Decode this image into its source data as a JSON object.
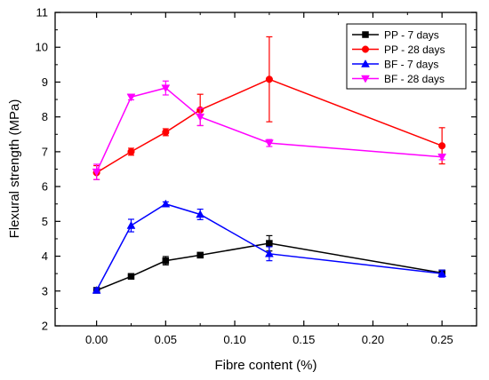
{
  "chart_data": {
    "type": "line",
    "xlabel": "Fibre content (%)",
    "ylabel": "Flexural strength (MPa)",
    "xlim": [
      -0.03,
      0.275
    ],
    "ylim": [
      2,
      11
    ],
    "x_ticks": [
      0.0,
      0.05,
      0.1,
      0.15,
      0.2,
      0.25
    ],
    "x_tick_labels": [
      "0.00",
      "0.05",
      "0.10",
      "0.15",
      "0.20",
      "0.25"
    ],
    "y_ticks": [
      2,
      3,
      4,
      5,
      6,
      7,
      8,
      9,
      10,
      11
    ],
    "y_tick_labels": [
      "2",
      "3",
      "4",
      "5",
      "6",
      "7",
      "8",
      "9",
      "10",
      "11"
    ],
    "grid": false,
    "legend_position": "top-right",
    "series": [
      {
        "name": "PP - 7 days",
        "color": "#000000",
        "marker": "square",
        "x": [
          0.0,
          0.025,
          0.05,
          0.075,
          0.125,
          0.25
        ],
        "y": [
          3.02,
          3.42,
          3.87,
          4.03,
          4.37,
          3.52
        ],
        "err": [
          0.05,
          0.04,
          0.12,
          0.05,
          0.22,
          0.08
        ]
      },
      {
        "name": "PP - 28 days",
        "color": "#ff0000",
        "marker": "circle",
        "x": [
          0.0,
          0.025,
          0.05,
          0.075,
          0.125,
          0.25
        ],
        "y": [
          6.4,
          7.0,
          7.56,
          8.2,
          9.08,
          7.17
        ],
        "err": [
          0.2,
          0.1,
          0.1,
          0.45,
          1.22,
          0.52
        ]
      },
      {
        "name": "BF - 7 days",
        "color": "#0000ff",
        "marker": "triangle-up",
        "x": [
          0.0,
          0.025,
          0.05,
          0.075,
          0.125,
          0.25
        ],
        "y": [
          3.02,
          4.88,
          5.5,
          5.2,
          4.07,
          3.5
        ],
        "err": [
          0.05,
          0.18,
          0.06,
          0.15,
          0.2,
          0.1
        ]
      },
      {
        "name": "BF - 28 days",
        "color": "#ff00ff",
        "marker": "triangle-down",
        "x": [
          0.0,
          0.025,
          0.05,
          0.075,
          0.125,
          0.25
        ],
        "y": [
          6.42,
          8.57,
          8.83,
          8.0,
          7.25,
          6.85
        ],
        "err": [
          0.22,
          0.08,
          0.2,
          0.25,
          0.1,
          0.08
        ]
      }
    ]
  }
}
